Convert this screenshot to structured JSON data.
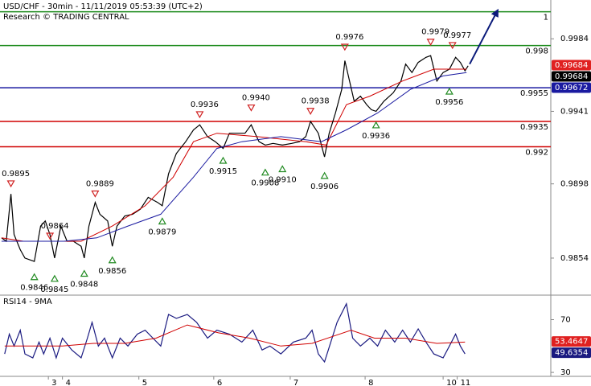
{
  "chart_data": [
    {
      "type": "line",
      "title": "USD/CHF - 30min - 11/11/2019 05:53:39 (UTC+2)",
      "subtitle": "Research © TRADING CENTRAL",
      "xlim": [
        0,
        353
      ],
      "ylim": [
        0.9833,
        1.0007
      ],
      "yticks": [
        0.9984,
        0.9941,
        0.9898,
        0.9854
      ],
      "series": [
        {
          "color": "#000000",
          "x": [
            1,
            4,
            7,
            9,
            13,
            16,
            22,
            26,
            29,
            32,
            35,
            39,
            43,
            47,
            52,
            54,
            57,
            61,
            64,
            69,
            72,
            75,
            80,
            85,
            90,
            95,
            101,
            104,
            108,
            113,
            119,
            124,
            128,
            133,
            138,
            143,
            147,
            152,
            157,
            161,
            166,
            170,
            175,
            181,
            187,
            192,
            196,
            199,
            204,
            208,
            211,
            215,
            219,
            221,
            224,
            227,
            231,
            235,
            238,
            241,
            246,
            252,
            257,
            260,
            264,
            268,
            273,
            276,
            280,
            284,
            288,
            292,
            295,
            298,
            300
          ],
          "values": [
            0.9866,
            0.9864,
            0.9892,
            0.9868,
            0.9859,
            0.9854,
            0.9852,
            0.9873,
            0.9876,
            0.9868,
            0.9854,
            0.9873,
            0.9864,
            0.9864,
            0.9861,
            0.9854,
            0.9873,
            0.9887,
            0.988,
            0.9876,
            0.9861,
            0.9873,
            0.9879,
            0.988,
            0.9883,
            0.989,
            0.9887,
            0.9885,
            0.9904,
            0.9916,
            0.9923,
            0.993,
            0.9933,
            0.9926,
            0.9923,
            0.9919,
            0.9928,
            0.9928,
            0.9928,
            0.9933,
            0.9923,
            0.9921,
            0.9922,
            0.9921,
            0.9922,
            0.9923,
            0.9926,
            0.9935,
            0.9928,
            0.9914,
            0.9928,
            0.994,
            0.9954,
            0.9971,
            0.9959,
            0.9947,
            0.995,
            0.9945,
            0.9942,
            0.9941,
            0.9947,
            0.9952,
            0.9959,
            0.9969,
            0.9964,
            0.997,
            0.9973,
            0.9974,
            0.9959,
            0.9964,
            0.9966,
            0.9973,
            0.997,
            0.9965,
            0.9968
          ]
        },
        {
          "color": "#d00000",
          "x": [
            1,
            15,
            31,
            52,
            72,
            93,
            111,
            124,
            139,
            165,
            196,
            209,
            222,
            237,
            258,
            278,
            299
          ],
          "values": [
            0.9866,
            0.9864,
            0.9864,
            0.9864,
            0.9873,
            0.9885,
            0.9902,
            0.9923,
            0.9928,
            0.9926,
            0.9923,
            0.9921,
            0.9945,
            0.995,
            0.9959,
            0.9966,
            0.9966
          ]
        },
        {
          "color": "#1a1aa0",
          "x": [
            1,
            21,
            41,
            62,
            82,
            103,
            124,
            139,
            155,
            180,
            206,
            222,
            242,
            263,
            284,
            299
          ],
          "values": [
            0.9864,
            0.9864,
            0.9864,
            0.9866,
            0.9873,
            0.988,
            0.9902,
            0.9919,
            0.9923,
            0.9926,
            0.9923,
            0.993,
            0.994,
            0.9954,
            0.9962,
            0.9964
          ]
        }
      ],
      "forecast_arrow": {
        "color": "#0a1a7a",
        "x": [
          301,
          319
        ],
        "values": [
          0.9969,
          1.0001
        ]
      },
      "levels": [
        {
          "value": 1,
          "label": "1",
          "color": "#1a8a1a"
        },
        {
          "value": 0.998,
          "label": "0.998",
          "color": "#1a8a1a"
        },
        {
          "value": 0.9955,
          "label": "0.9955",
          "color": "#1a1aa0"
        },
        {
          "value": 0.9935,
          "label": "0.9935",
          "color": "#d00000"
        },
        {
          "value": 0.992,
          "label": "0.992",
          "color": "#d00000"
        }
      ],
      "annotations": {
        "x": [
          7,
          22,
          32,
          35,
          54,
          61,
          72,
          104,
          128,
          143,
          161,
          170,
          181,
          199,
          208,
          221,
          241,
          276,
          290,
          288
        ],
        "values": [
          0.9895,
          0.9846,
          0.9864,
          0.9845,
          0.9848,
          0.9889,
          0.9856,
          0.9879,
          0.9936,
          0.9915,
          0.994,
          0.9908,
          0.991,
          0.9938,
          0.9906,
          0.9976,
          0.9936,
          0.9979,
          0.9977,
          0.9956
        ],
        "value_labels": [
          "0.9895",
          "0.9846",
          "0.9864",
          "0.9845",
          "0.9848",
          "0.9889",
          "0.9856",
          "0.9879",
          "0.9936",
          "0.9915",
          "0.9940",
          "0.9908",
          "0.9910",
          "0.9938",
          "0.9906",
          "0.9976",
          "0.9936",
          "0.9979",
          "0.9977",
          "0.9956"
        ],
        "position": [
          "above",
          "below",
          "above",
          "below",
          "below",
          "above",
          "below",
          "below",
          "above",
          "below",
          "above",
          "below",
          "below",
          "above",
          "below",
          "above",
          "below",
          "above",
          "above",
          "below"
        ]
      },
      "price_tags": {
        "values": [
          0.99684,
          0.99684,
          0.99672
        ],
        "colors": [
          "#e02020",
          "#000000",
          "#1a1aa0"
        ]
      }
    },
    {
      "type": "line",
      "title": "RSI14 - 9MA",
      "xlim": [
        0,
        353
      ],
      "ylim": [
        27,
        88
      ],
      "yticks": [
        70,
        30
      ],
      "xticks": [
        {
          "value": 31,
          "label": "3"
        },
        {
          "value": 40,
          "label": "4"
        },
        {
          "value": 89,
          "label": "5"
        },
        {
          "value": 137,
          "label": "6"
        },
        {
          "value": 186,
          "label": "7"
        },
        {
          "value": 234,
          "label": "8"
        },
        {
          "value": 284,
          "label": "10"
        },
        {
          "value": 293,
          "label": "11"
        }
      ],
      "series": [
        {
          "color": "#1a1a80",
          "x": [
            3,
            6,
            9,
            13,
            16,
            21,
            25,
            28,
            32,
            36,
            40,
            46,
            52,
            56,
            59,
            63,
            67,
            72,
            77,
            82,
            88,
            93,
            98,
            103,
            108,
            113,
            120,
            126,
            133,
            139,
            147,
            155,
            162,
            168,
            173,
            180,
            188,
            196,
            200,
            204,
            208,
            212,
            216,
            222,
            226,
            231,
            237,
            242,
            247,
            253,
            258,
            263,
            268,
            273,
            278,
            284,
            288,
            292,
            295,
            298
          ],
          "values": [
            44,
            59,
            50,
            62,
            44,
            41,
            53,
            44,
            56,
            41,
            56,
            47,
            41,
            56,
            68,
            50,
            56,
            41,
            56,
            50,
            59,
            62,
            56,
            50,
            74,
            71,
            74,
            68,
            56,
            62,
            59,
            53,
            62,
            47,
            50,
            44,
            53,
            56,
            62,
            44,
            38,
            53,
            68,
            82,
            56,
            50,
            56,
            50,
            62,
            53,
            62,
            53,
            63,
            53,
            44,
            41,
            50,
            59,
            50,
            44
          ]
        },
        {
          "color": "#d00000",
          "x": [
            3,
            20,
            40,
            60,
            80,
            100,
            120,
            140,
            160,
            180,
            200,
            215,
            225,
            240,
            260,
            280,
            298
          ],
          "values": [
            50,
            50,
            50,
            52,
            52,
            56,
            66,
            60,
            56,
            50,
            52,
            58,
            62,
            56,
            56,
            52,
            53
          ]
        }
      ],
      "price_tags": {
        "values": [
          53.4647,
          49.6354
        ],
        "colors": [
          "#e02020",
          "#1a1a80"
        ]
      }
    }
  ]
}
